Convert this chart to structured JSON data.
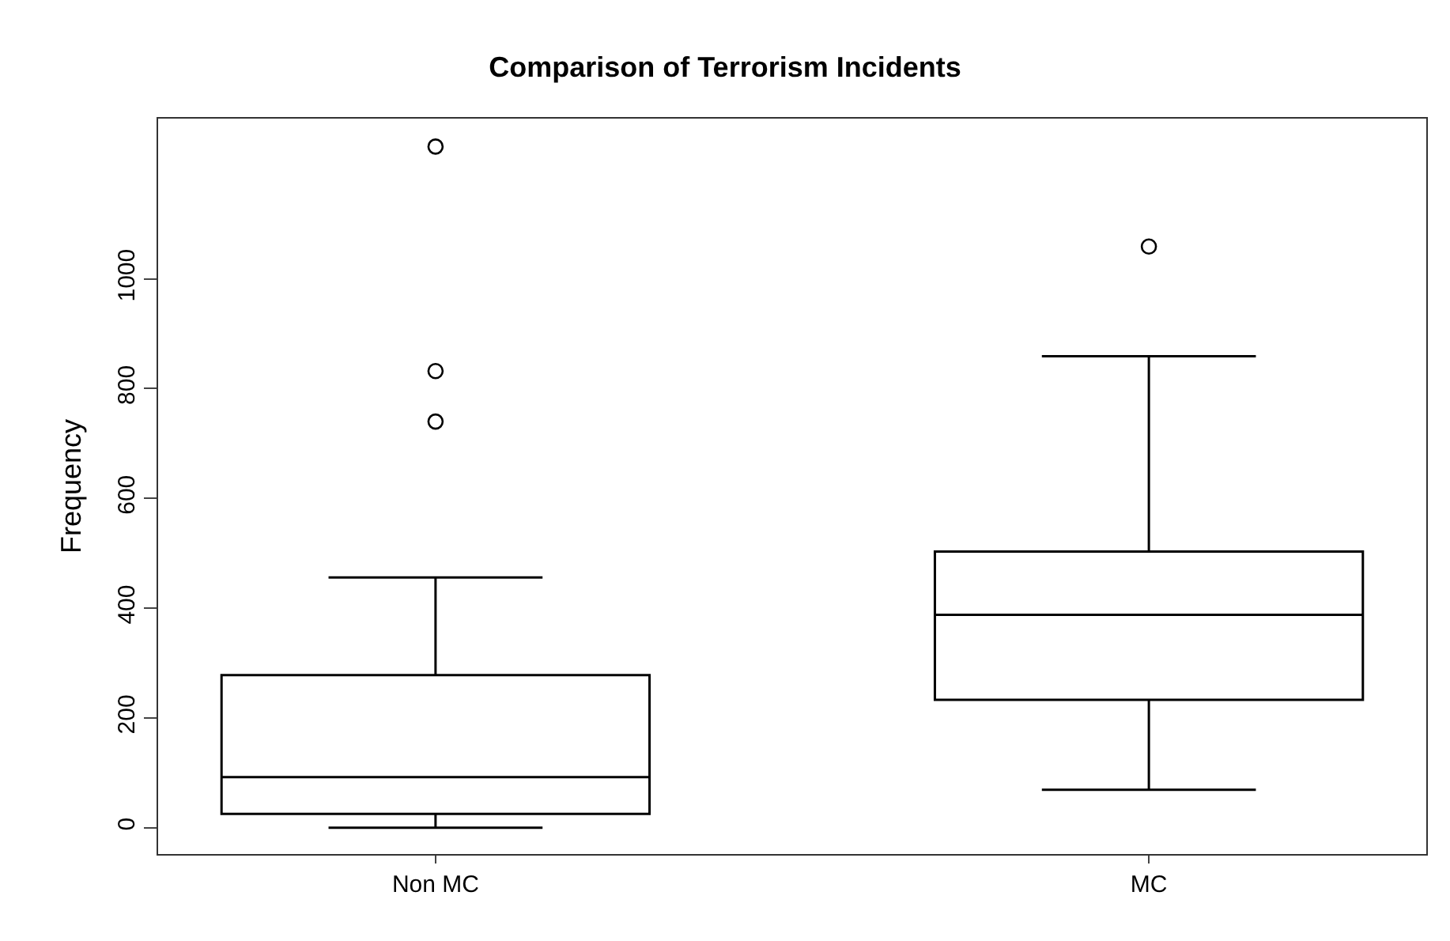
{
  "chart_data": {
    "type": "box",
    "title": "Comparison of Terrorism Incidents",
    "ylabel": "Frequency",
    "categories": [
      "Non MC",
      "MC"
    ],
    "boxes": [
      {
        "low": 0,
        "q1": 25,
        "median": 92,
        "q3": 278,
        "high": 456,
        "outliers": [
          1241,
          832,
          740
        ]
      },
      {
        "low": 69,
        "q1": 233,
        "median": 388,
        "q3": 503,
        "high": 859,
        "outliers": [
          1059
        ]
      }
    ],
    "color": "#000000",
    "ylim": [
      -48,
      1292
    ],
    "yticks": [
      0,
      200,
      400,
      600,
      800,
      1000
    ],
    "marker": "circle"
  }
}
